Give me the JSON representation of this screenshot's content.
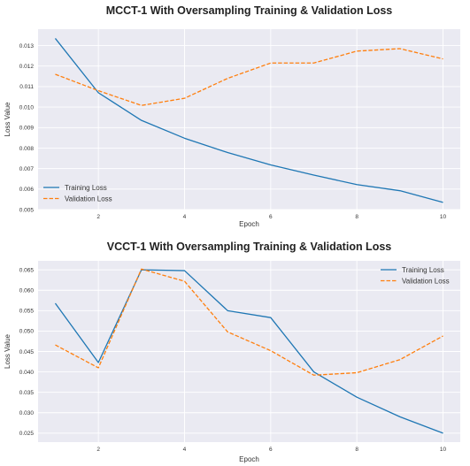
{
  "chart_data": [
    {
      "type": "line",
      "title": "MCCT-1 With Oversampling Training & Validation Loss",
      "xlabel": "Epoch",
      "ylabel": "Loss Value",
      "x": [
        1,
        2,
        3,
        4,
        5,
        6,
        7,
        8,
        9,
        10
      ],
      "xticks": [
        2,
        4,
        6,
        8,
        10
      ],
      "xlim": [
        0.6,
        10.4
      ],
      "yticks": [
        0.005,
        0.006,
        0.007,
        0.008,
        0.009,
        0.01,
        0.011,
        0.012,
        0.013
      ],
      "ytick_labels": [
        "0.005",
        "0.006",
        "0.007",
        "0.008",
        "0.009",
        "0.010",
        "0.011",
        "0.012",
        "0.013"
      ],
      "ylim": [
        0.005,
        0.0138
      ],
      "grid": true,
      "legend": "lower-left",
      "series": [
        {
          "name": "Training Loss",
          "color": "#1f77b4",
          "dash": "solid",
          "values": [
            0.01335,
            0.0107,
            0.00935,
            0.00848,
            0.00778,
            0.00718,
            0.00668,
            0.00622,
            0.00592,
            0.00535
          ]
        },
        {
          "name": "Validation Loss",
          "color": "#ff7f0e",
          "dash": "dashed",
          "values": [
            0.0116,
            0.0108,
            0.01008,
            0.01043,
            0.0114,
            0.01215,
            0.01215,
            0.01273,
            0.01285,
            0.01235
          ]
        }
      ]
    },
    {
      "type": "line",
      "title": "VCCT-1 With Oversampling Training & Validation Loss",
      "xlabel": "Epoch",
      "ylabel": "Loss Value",
      "x": [
        1,
        2,
        3,
        4,
        5,
        6,
        7,
        8,
        9,
        10
      ],
      "xticks": [
        2,
        4,
        6,
        8,
        10
      ],
      "xlim": [
        0.6,
        10.4
      ],
      "yticks": [
        0.025,
        0.03,
        0.035,
        0.04,
        0.045,
        0.05,
        0.055,
        0.06,
        0.065
      ],
      "ytick_labels": [
        "0.025",
        "0.030",
        "0.035",
        "0.040",
        "0.045",
        "0.050",
        "0.055",
        "0.060",
        "0.065"
      ],
      "ylim": [
        0.0228,
        0.0672
      ],
      "grid": true,
      "legend": "upper-right",
      "series": [
        {
          "name": "Training Loss",
          "color": "#1f77b4",
          "dash": "solid",
          "values": [
            0.0568,
            0.0423,
            0.065,
            0.0648,
            0.055,
            0.0533,
            0.04,
            0.0338,
            0.029,
            0.025
          ]
        },
        {
          "name": "Validation Loss",
          "color": "#ff7f0e",
          "dash": "dashed",
          "values": [
            0.0466,
            0.041,
            0.0652,
            0.0622,
            0.0498,
            0.0452,
            0.0392,
            0.0398,
            0.043,
            0.0488
          ]
        }
      ]
    }
  ]
}
